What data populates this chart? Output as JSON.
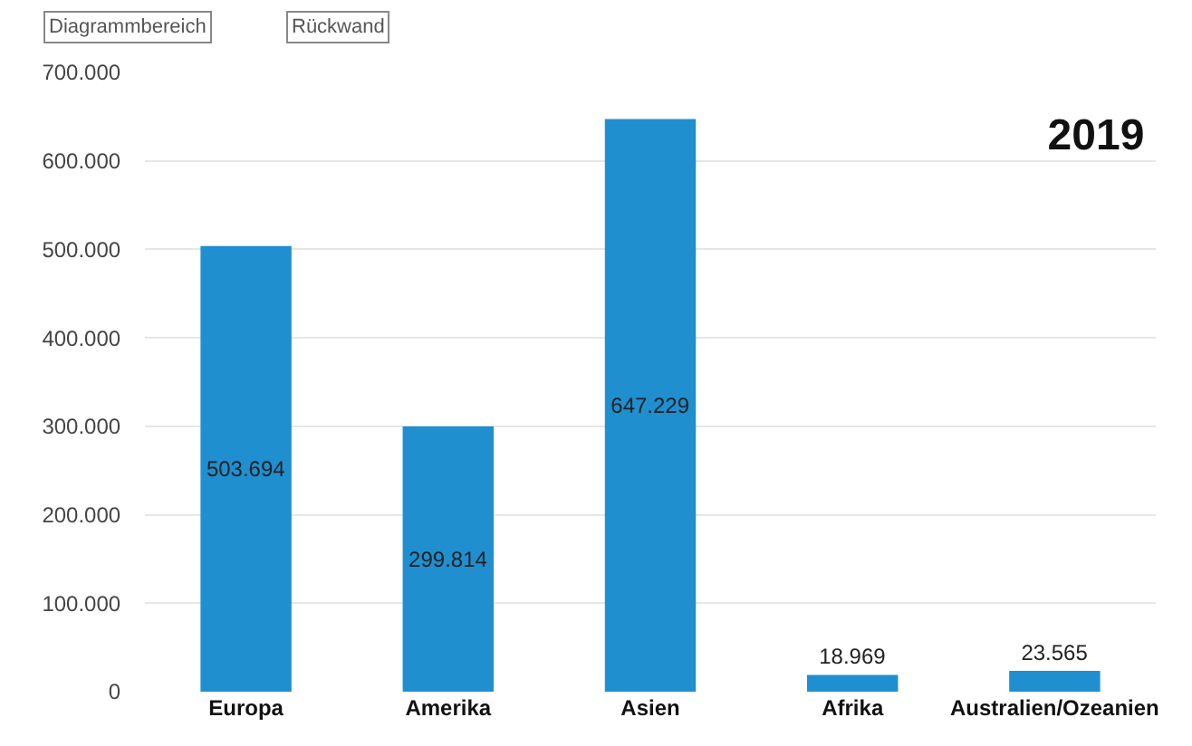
{
  "chart_data": {
    "type": "bar",
    "title": "2019",
    "categories": [
      "Europa",
      "Amerika",
      "Asien",
      "Afrika",
      "Australien/Ozeanien"
    ],
    "values": [
      503694,
      299814,
      647229,
      18969,
      23565
    ],
    "value_labels": [
      "503.694",
      "299.814",
      "647.229",
      "18.969",
      "23.565"
    ],
    "color": "#1f8fd0",
    "ylim": [
      0,
      700000
    ],
    "yticks": [
      {
        "value": 0,
        "label": "0"
      },
      {
        "value": 100000,
        "label": "100.000"
      },
      {
        "value": 200000,
        "label": "200.000"
      },
      {
        "value": 300000,
        "label": "300.000"
      },
      {
        "value": 400000,
        "label": "400.000"
      },
      {
        "value": 500000,
        "label": "500.000"
      },
      {
        "value": 600000,
        "label": "600.000"
      },
      {
        "value": 700000,
        "label": "700.000"
      }
    ],
    "grid": "y",
    "annotations": [
      "Diagrammbereich",
      "Rückwand"
    ]
  }
}
